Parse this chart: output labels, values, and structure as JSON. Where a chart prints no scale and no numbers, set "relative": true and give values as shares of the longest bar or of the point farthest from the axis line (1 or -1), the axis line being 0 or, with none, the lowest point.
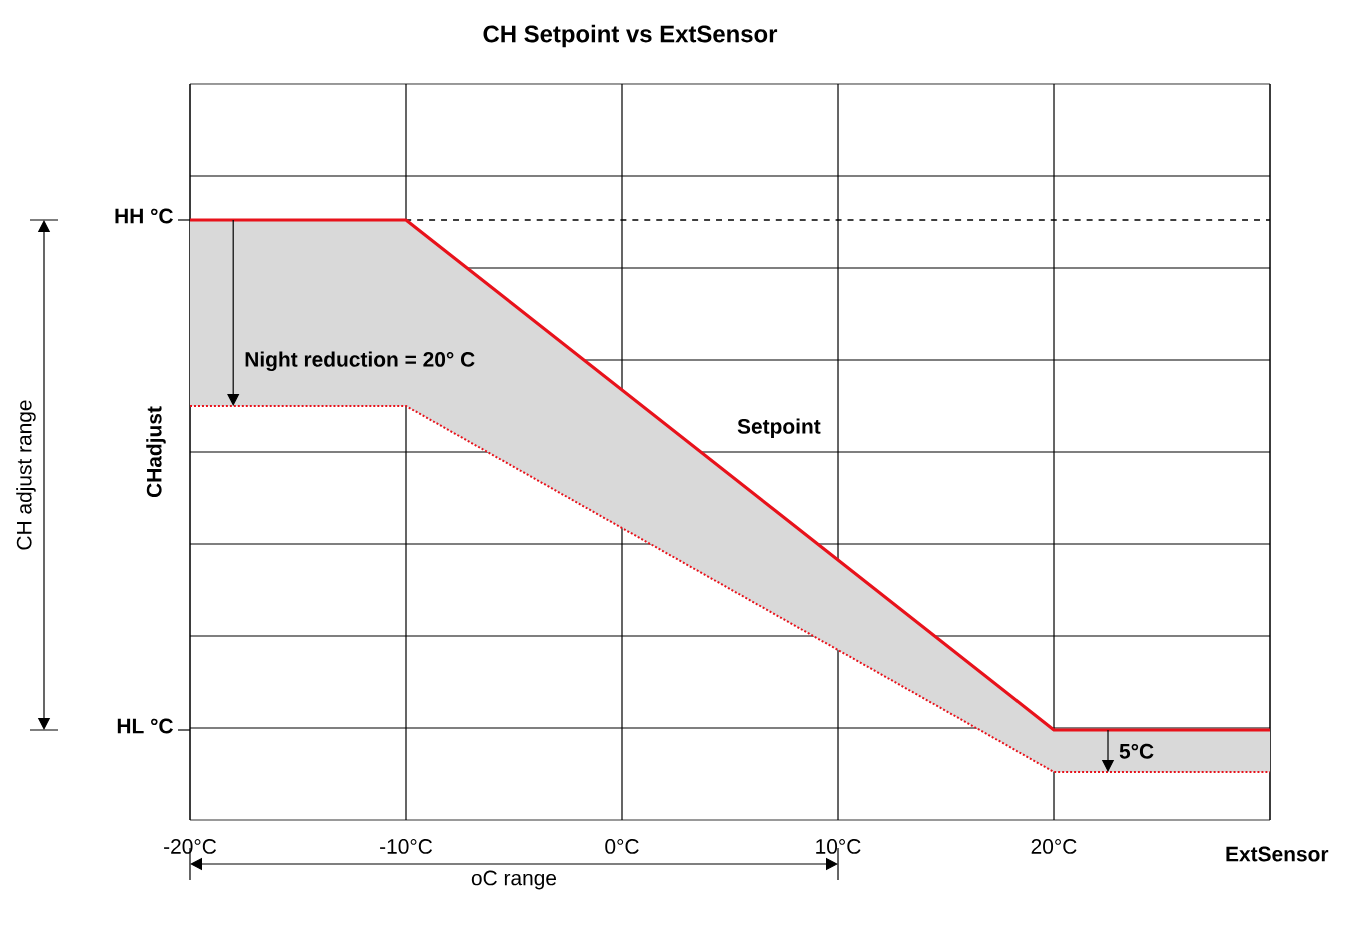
{
  "chart_data": {
    "type": "line",
    "title": "CH Setpoint vs ExtSensor",
    "xlabel": "ExtSensor",
    "ylabel": "CHadjust",
    "x": [
      -20,
      -10,
      20,
      30
    ],
    "series": [
      {
        "name": "Setpoint",
        "color": "#e8121b",
        "values": [
          1,
          1,
          0.15,
          0.15
        ],
        "lower": [
          0.69,
          0.69,
          0.08,
          0.08
        ],
        "upper": [
          1,
          1,
          0.15,
          0.15
        ],
        "line_style": "solid"
      },
      {
        "color": "#e8121b",
        "values": [
          0.69,
          0.69,
          0.08,
          0.08
        ],
        "line_style": "dotted"
      }
    ],
    "relative": true,
    "xlim": [
      -20,
      30
    ],
    "xticks": [
      {
        "value": -20,
        "label": "-20°C"
      },
      {
        "value": -10,
        "label": "-10°C"
      },
      {
        "value": 0,
        "label": "0°C"
      },
      {
        "value": 10,
        "label": "10°C"
      },
      {
        "value": 20,
        "label": "20°C"
      },
      {
        "value": 30,
        "label": null
      }
    ],
    "ref_lines": [
      {
        "axis": "y",
        "value": 1,
        "color": "#000000",
        "line_style": "dashed"
      }
    ],
    "annotations": [
      "HH °C",
      "HL °C",
      {
        "text": "Night reduction = 20° C",
        "x": -18,
        "y": 0.69
      },
      {
        "text": "5°C",
        "x": 22.5,
        "y": 0.08
      },
      "CH adjust range",
      "oC range"
    ],
    "grid": true,
    "marker": "none"
  }
}
